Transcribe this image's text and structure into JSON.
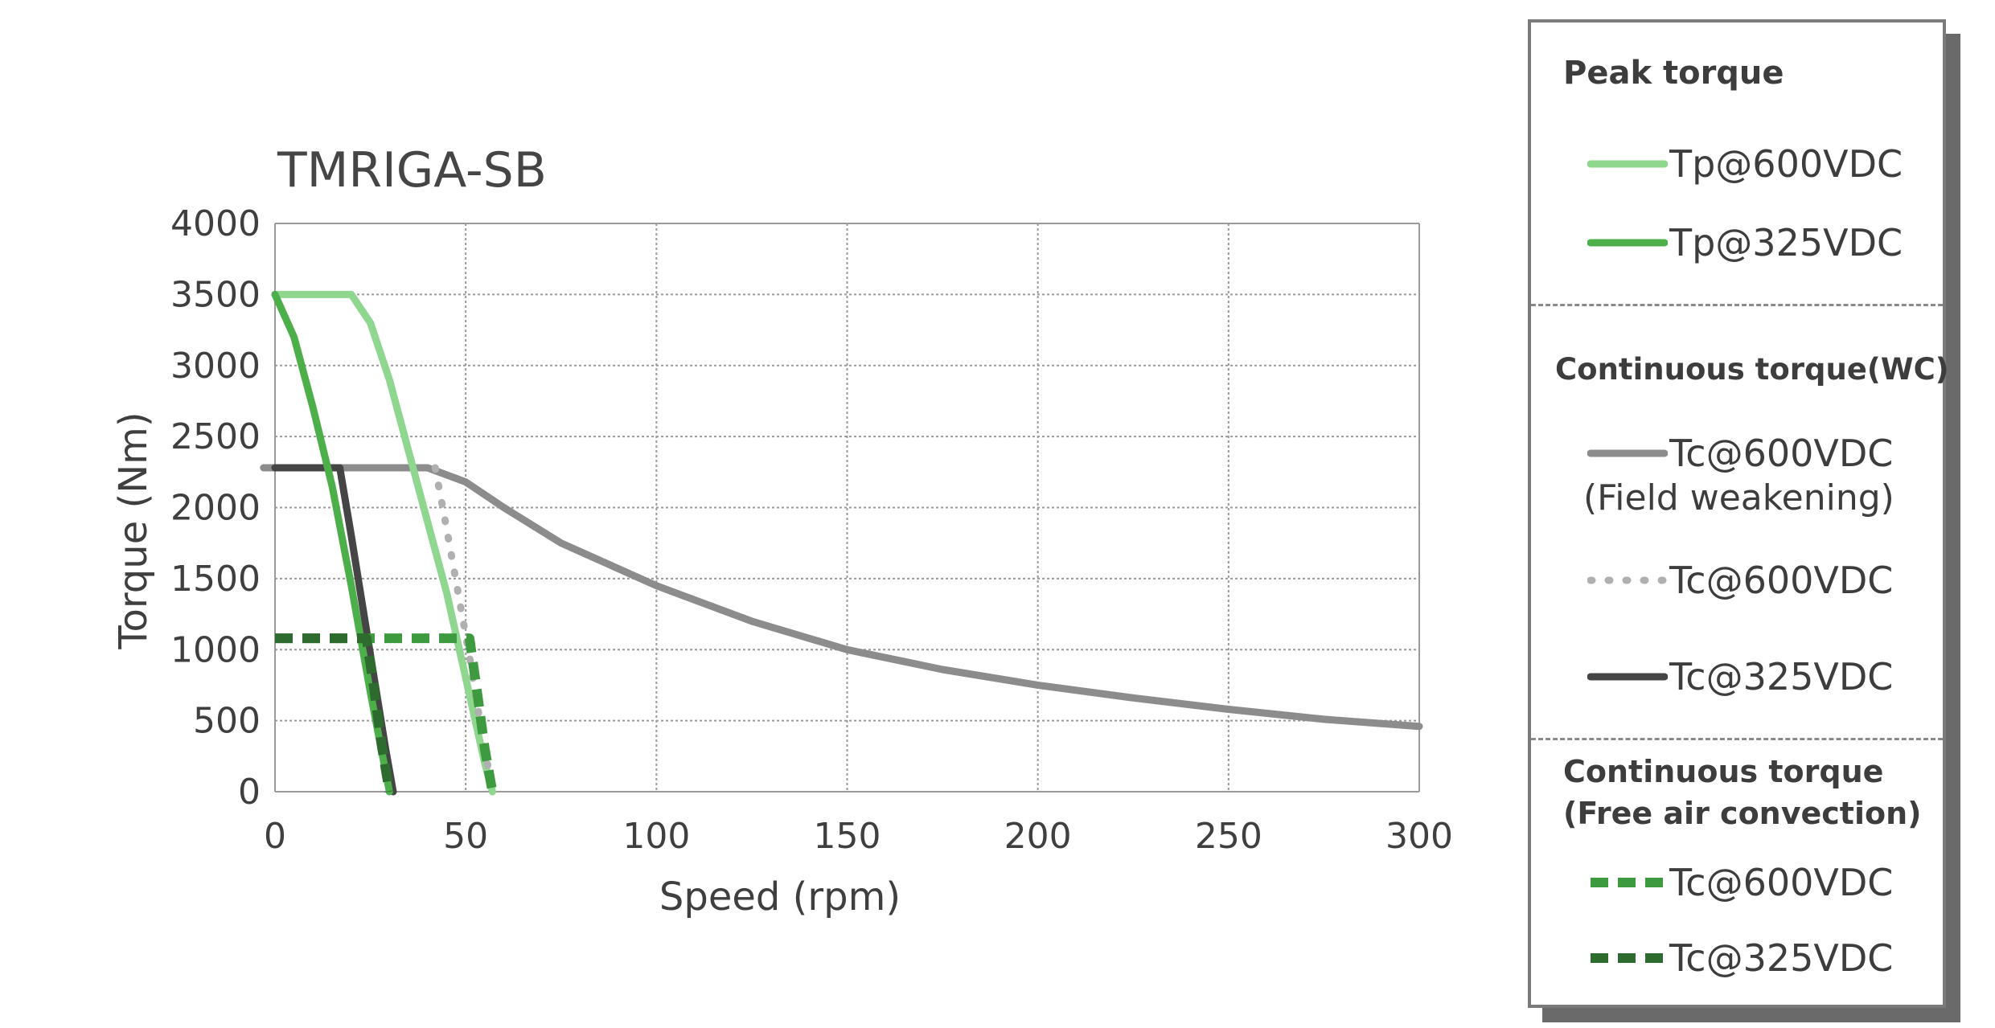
{
  "chart_data": {
    "type": "line",
    "title": "TMRIGA-SB",
    "xlabel": "Speed (rpm)",
    "ylabel": "Torque (Nm)",
    "xlim": [
      0,
      300
    ],
    "ylim": [
      0,
      4000
    ],
    "xticks": [
      "0",
      "50",
      "100",
      "150",
      "200",
      "250",
      "300"
    ],
    "yticks": [
      "0",
      "500",
      "1000",
      "1500",
      "2000",
      "2500",
      "3000",
      "3500",
      "4000"
    ],
    "grid": true,
    "legend_position": "right",
    "series": [
      {
        "name": "Tp@600VDC",
        "group": "peak",
        "color": "#8fd68f",
        "style": "solid",
        "x": [
          0,
          20,
          25,
          30,
          35,
          40,
          45,
          50,
          55,
          57
        ],
        "y": [
          3500,
          3500,
          3300,
          2900,
          2400,
          1900,
          1400,
          800,
          200,
          0
        ]
      },
      {
        "name": "Tp@325VDC",
        "group": "peak",
        "color": "#4daf4a",
        "style": "solid",
        "x": [
          0,
          5,
          10,
          15,
          20,
          25,
          30
        ],
        "y": [
          3500,
          3200,
          2700,
          2150,
          1450,
          700,
          0
        ]
      },
      {
        "name": "Tc@600VDC",
        "sublabel": "(Field weakening)",
        "group": "wc",
        "color": "#8c8c8c",
        "style": "solid",
        "x": [
          -3,
          30,
          40,
          50,
          60,
          75,
          100,
          125,
          150,
          175,
          200,
          225,
          250,
          275,
          300
        ],
        "y": [
          2280,
          2280,
          2280,
          2180,
          2000,
          1750,
          1450,
          1200,
          1000,
          860,
          750,
          660,
          580,
          510,
          460
        ]
      },
      {
        "name": "Tc@600VDC",
        "group": "wc",
        "color": "#b0b0b0",
        "style": "dotted",
        "x": [
          42,
          45,
          48,
          51,
          54,
          57
        ],
        "y": [
          2280,
          1850,
          1400,
          950,
          450,
          0
        ]
      },
      {
        "name": "Tc@325VDC",
        "group": "wc",
        "color": "#454545",
        "style": "solid",
        "x": [
          0,
          17,
          20,
          23,
          26,
          29,
          31
        ],
        "y": [
          2280,
          2280,
          1800,
          1300,
          800,
          300,
          0
        ]
      },
      {
        "name": "Tc@600VDC",
        "group": "free",
        "color": "#3e9a3e",
        "style": "dashed",
        "x": [
          0,
          51,
          53,
          55,
          57
        ],
        "y": [
          1080,
          1080,
          700,
          300,
          0
        ]
      },
      {
        "name": "Tc@325VDC",
        "group": "free",
        "color": "#2e6b2e",
        "style": "dashed",
        "x": [
          0,
          24,
          26,
          28,
          30
        ],
        "y": [
          1080,
          1080,
          720,
          320,
          0
        ]
      }
    ]
  },
  "legend": {
    "peak_heading": "Peak torque",
    "wc_heading": "Continuous torque(WC)",
    "free_heading_line1": "Continuous torque",
    "free_heading_line2": "(Free air convection)"
  }
}
